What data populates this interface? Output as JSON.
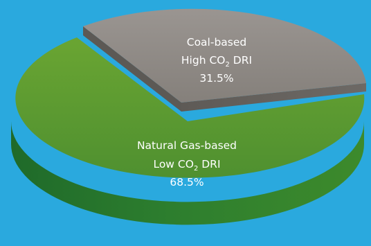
{
  "chart_data": {
    "type": "pie",
    "style": "3d",
    "slices": [
      {
        "line1": "Coal-based",
        "line2_prefix": "High CO",
        "line2_sub": "2",
        "line2_suffix": " DRI",
        "percent_text": "31.5%",
        "value": 31.5,
        "color": "#8f8a85"
      },
      {
        "line1": "Natural Gas-based",
        "line2_prefix": "Low CO",
        "line2_sub": "2",
        "line2_suffix": " DRI",
        "percent_text": "68.5%",
        "value": 68.5,
        "color": "#5f9a2f"
      }
    ]
  }
}
